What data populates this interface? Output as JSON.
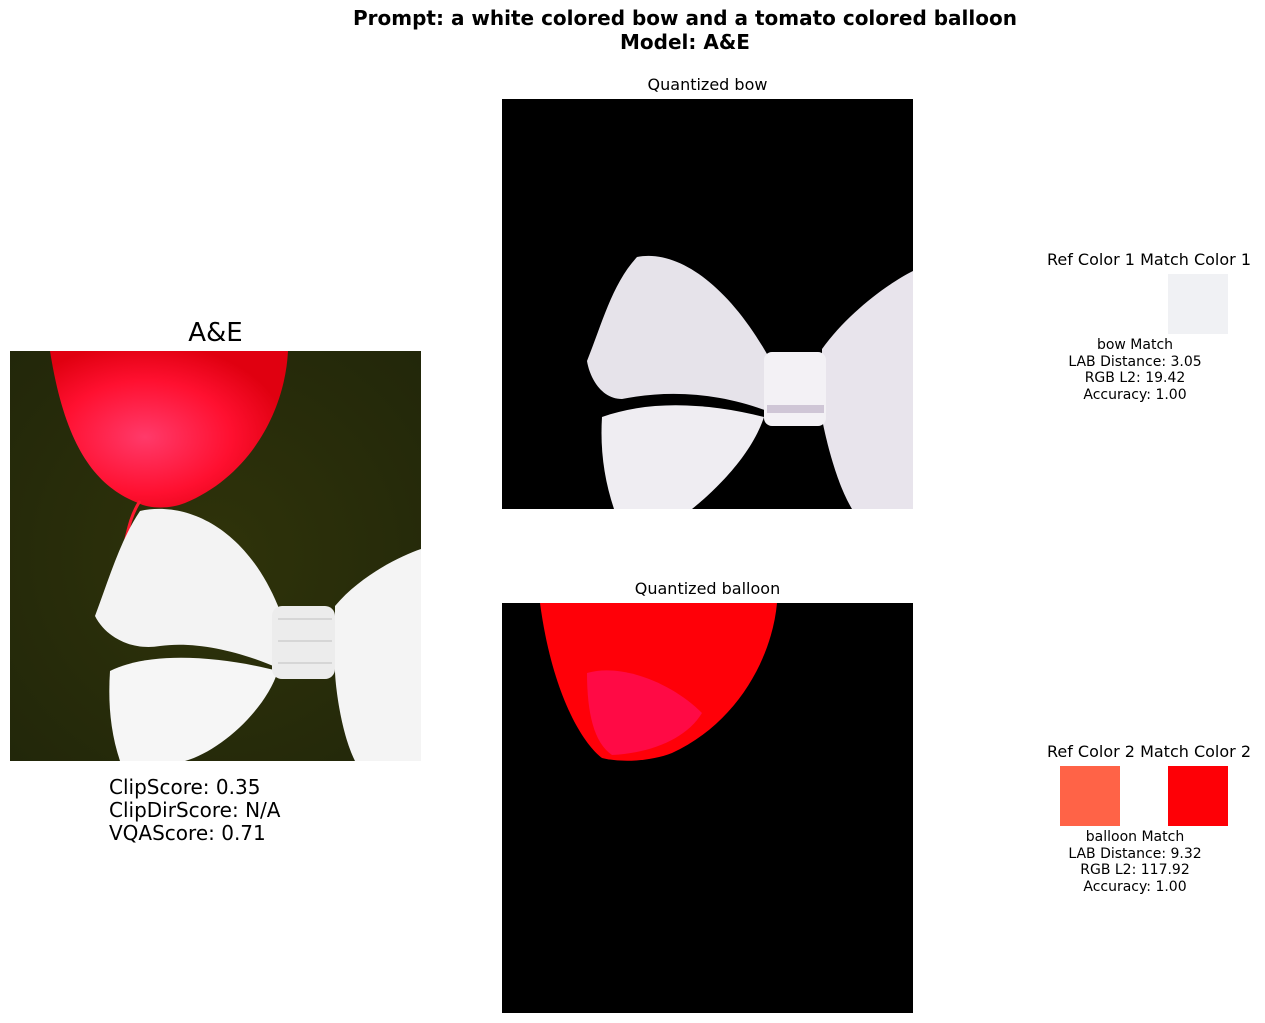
{
  "header": {
    "prompt_line": "Prompt: a white colored bow and a tomato colored balloon",
    "model_line": "Model: A&E"
  },
  "generated": {
    "title": "A&E",
    "scores": {
      "clip": "ClipScore: 0.35",
      "clip_dir": "ClipDirScore: N/A",
      "vqa": "VQAScore: 0.71"
    }
  },
  "quantized": [
    {
      "title": "Quantized bow"
    },
    {
      "title": "Quantized balloon"
    }
  ],
  "color_pairs": [
    {
      "ref_label": "Ref Color 1",
      "match_label": "Match Color 1",
      "ref_color": null,
      "match_color": "#f0f1f4",
      "lines": [
        "bow Match",
        "LAB Distance: 3.05",
        "RGB L2: 19.42",
        "Accuracy: 1.00"
      ]
    },
    {
      "ref_label": "Ref Color 2",
      "match_label": "Match Color 2",
      "ref_color": "#ff6347",
      "match_color": "#fe0006",
      "lines": [
        "balloon Match",
        "LAB Distance: 9.32",
        "RGB L2: 117.92",
        "Accuracy: 1.00"
      ]
    }
  ]
}
